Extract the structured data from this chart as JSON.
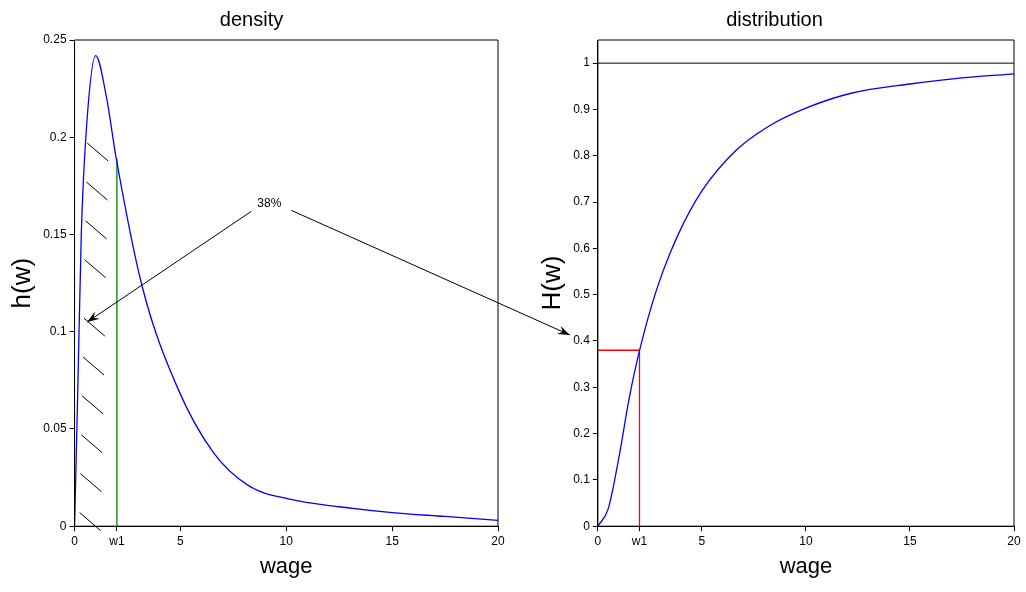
{
  "chart_data": [
    {
      "type": "line",
      "title": "density",
      "xlabel": "wage",
      "ylabel": "h(w)",
      "annotations": [
        "38%"
      ],
      "xlim": [
        0,
        20
      ],
      "ylim": [
        0,
        0.25
      ],
      "xticks": [
        0,
        {
          "value": 2,
          "label": "w1"
        },
        5,
        10,
        15,
        20
      ],
      "yticks": [
        0,
        0.05,
        0.1,
        0.15,
        0.2,
        0.25
      ],
      "grid": false,
      "legend": false,
      "series": [
        {
          "color": "#0000ff",
          "x": [
            0,
            0.15,
            0.32,
            0.57,
            1.0,
            1.5,
            1.97,
            3.2,
            4.87,
            6.55,
            8.2,
            10.1,
            12.5,
            15,
            17.5,
            20
          ],
          "values": [
            0,
            0.069,
            0.151,
            0.206,
            0.242,
            0.221,
            0.189,
            0.123,
            0.071,
            0.038,
            0.021,
            0.014,
            0.01,
            0.007,
            0.005,
            0.003
          ]
        },
        {
          "color": "#008000",
          "x": [
            2,
            2
          ],
          "values": [
            0,
            0.189
          ]
        }
      ]
    },
    {
      "type": "line",
      "title": "distribution",
      "xlabel": "wage",
      "ylabel": "H(w)",
      "xlim": [
        0,
        20
      ],
      "ylim": [
        0,
        1.05
      ],
      "xticks": [
        0,
        {
          "value": 2,
          "label": "w1"
        },
        5,
        10,
        15,
        20
      ],
      "yticks": [
        0,
        0.1,
        0.2,
        0.3,
        0.4,
        0.5,
        0.6,
        0.7,
        0.8,
        0.9,
        1
      ],
      "grid": false,
      "legend": false,
      "ref_lines": [
        {
          "axis": "y",
          "value": 1,
          "color": "#000000"
        }
      ],
      "series": [
        {
          "color": "#0000ff",
          "x": [
            0,
            0.5,
            1.0,
            1.5,
            2.0,
            2.83,
            3.83,
            5,
            6.67,
            8.33,
            10,
            12.17,
            15,
            17.5,
            20
          ],
          "values": [
            0,
            0.038,
            0.146,
            0.275,
            0.379,
            0.512,
            0.627,
            0.724,
            0.813,
            0.867,
            0.903,
            0.935,
            0.955,
            0.968,
            0.977
          ]
        },
        {
          "color": "#ff0000",
          "x": [
            0,
            2,
            2
          ],
          "values": [
            0.38,
            0.38,
            0
          ]
        }
      ]
    }
  ]
}
